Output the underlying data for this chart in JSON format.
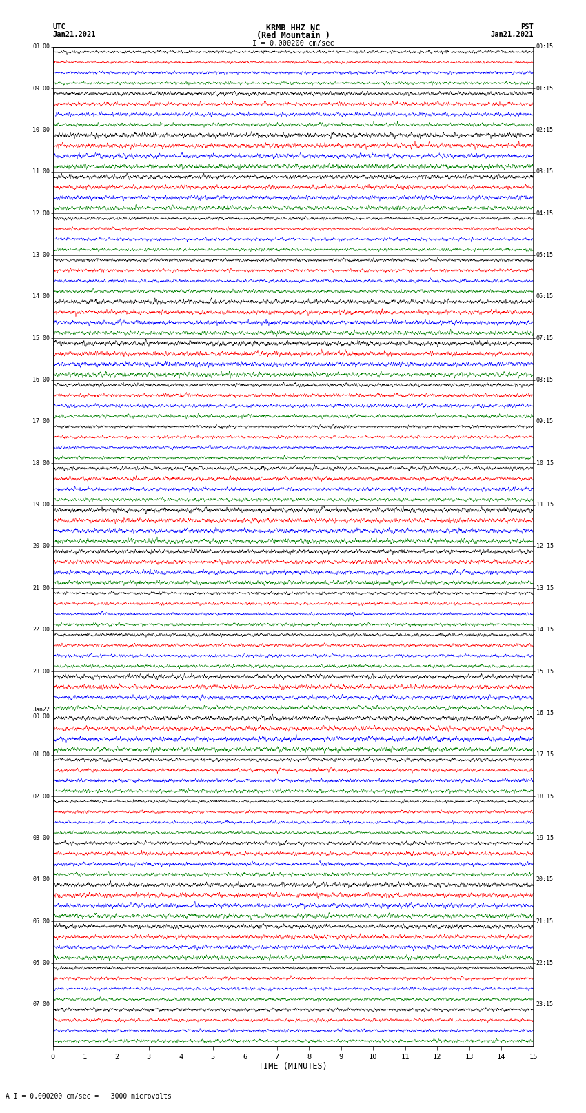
{
  "title_line1": "KRMB HHZ NC",
  "title_line2": "(Red Mountain )",
  "scale_label": "I = 0.000200 cm/sec",
  "bottom_label": "A₀I = 0.000200 cm/sec =   3000 microvolts",
  "xlabel": "TIME (MINUTES)",
  "utc_header1": "UTC",
  "utc_header2": "Jan21,2021",
  "pst_header1": "PST",
  "pst_header2": "Jan21,2021",
  "utc_times": [
    "08:00",
    "09:00",
    "10:00",
    "11:00",
    "12:00",
    "13:00",
    "14:00",
    "15:00",
    "16:00",
    "17:00",
    "18:00",
    "19:00",
    "20:00",
    "21:00",
    "22:00",
    "23:00",
    "Jan22\n00:00",
    "01:00",
    "02:00",
    "03:00",
    "04:00",
    "05:00",
    "06:00",
    "07:00"
  ],
  "pst_times": [
    "00:15",
    "01:15",
    "02:15",
    "03:15",
    "04:15",
    "05:15",
    "06:15",
    "07:15",
    "08:15",
    "09:15",
    "10:15",
    "11:15",
    "12:15",
    "13:15",
    "14:15",
    "15:15",
    "16:15",
    "17:15",
    "18:15",
    "19:15",
    "20:15",
    "21:15",
    "22:15",
    "23:15"
  ],
  "n_groups": 24,
  "traces_per_group": 4,
  "colors": [
    "black",
    "red",
    "blue",
    "green"
  ],
  "bg_color": "#ffffff",
  "xmin": 0,
  "xmax": 15,
  "xticks": [
    0,
    1,
    2,
    3,
    4,
    5,
    6,
    7,
    8,
    9,
    10,
    11,
    12,
    13,
    14,
    15
  ],
  "figwidth": 8.5,
  "figheight": 16.13
}
